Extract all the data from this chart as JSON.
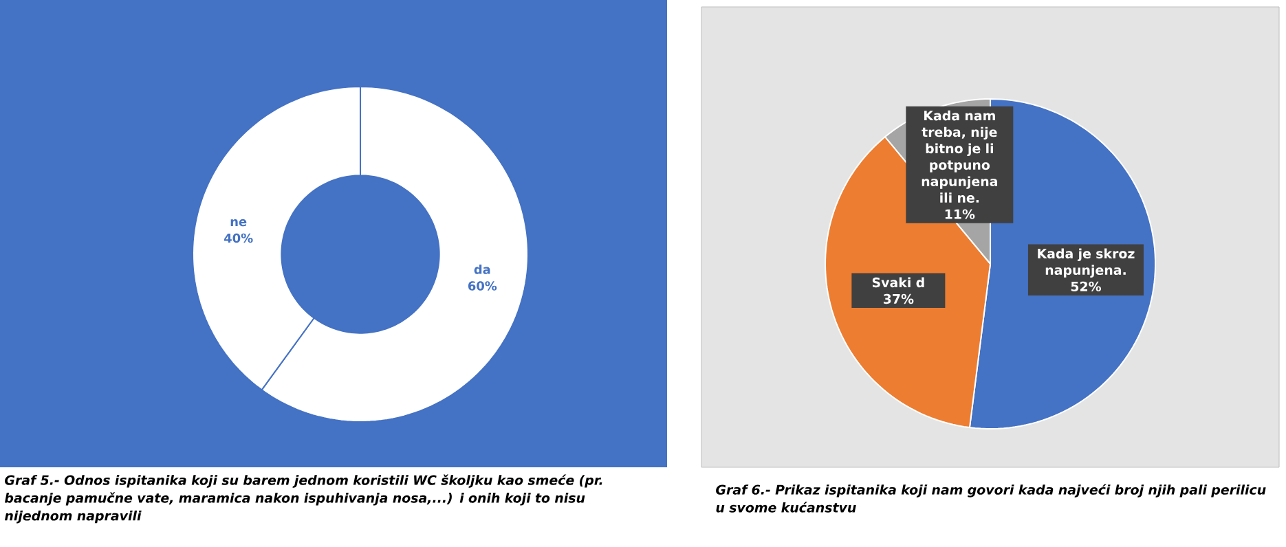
{
  "chart_data": [
    {
      "type": "donut",
      "categories": [
        "da",
        "ne"
      ],
      "values": [
        60,
        40
      ],
      "colors": [
        "#ffffff",
        "#ffffff"
      ],
      "value_labels": [
        "60%",
        "40%"
      ],
      "annotations": [
        "Graf 5.- Odnos ispitanika koji su barem jednom koristili WC školjku kao smeće (pr. bacanje pamučne vate, maramica nakon ispuhivanja nosa,...) i onih koji to nisu nijednom napravili"
      ]
    },
    {
      "type": "pie",
      "categories": [
        "Kada je skroz napunjena.",
        "Svaki d",
        "Kada nam treba, nije bitno je li potpuno napunjena ili ne."
      ],
      "values": [
        52,
        37,
        11
      ],
      "colors": [
        "#4472c4",
        "#ed7d31",
        "#a5a5a5"
      ],
      "value_labels": [
        "52%",
        "37%",
        "11%"
      ],
      "annotations": [
        "Graf 6.- Prikaz ispitanika koji nam govori kada najveći broj njih pali perilicu u svome kućanstvu"
      ]
    }
  ]
}
